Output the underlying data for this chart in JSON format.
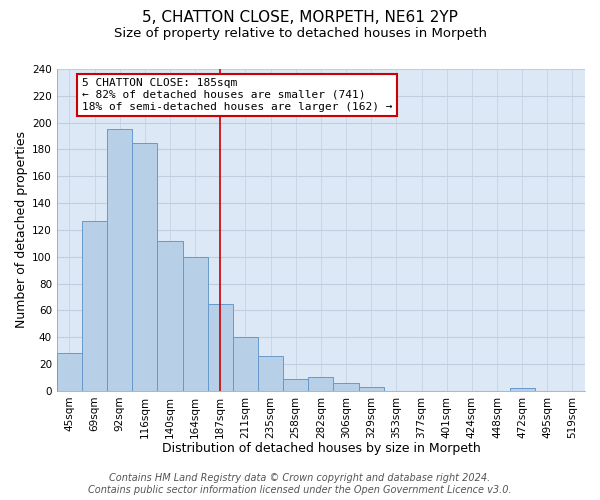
{
  "title": "5, CHATTON CLOSE, MORPETH, NE61 2YP",
  "subtitle": "Size of property relative to detached houses in Morpeth",
  "xlabel": "Distribution of detached houses by size in Morpeth",
  "ylabel": "Number of detached properties",
  "bar_labels": [
    "45sqm",
    "69sqm",
    "92sqm",
    "116sqm",
    "140sqm",
    "164sqm",
    "187sqm",
    "211sqm",
    "235sqm",
    "258sqm",
    "282sqm",
    "306sqm",
    "329sqm",
    "353sqm",
    "377sqm",
    "401sqm",
    "424sqm",
    "448sqm",
    "472sqm",
    "495sqm",
    "519sqm"
  ],
  "bar_values": [
    28,
    127,
    195,
    185,
    112,
    100,
    65,
    40,
    26,
    9,
    10,
    6,
    3,
    0,
    0,
    0,
    0,
    0,
    2,
    0,
    0
  ],
  "bar_color": "#b8cfe8",
  "bar_edge_color": "#6699cc",
  "vline_x_index": 6,
  "vline_color": "#cc0000",
  "annotation_line1": "5 CHATTON CLOSE: 185sqm",
  "annotation_line2": "← 82% of detached houses are smaller (741)",
  "annotation_line3": "18% of semi-detached houses are larger (162) →",
  "annotation_box_color": "#ffffff",
  "annotation_box_edge_color": "#cc0000",
  "ylim": [
    0,
    240
  ],
  "yticks": [
    0,
    20,
    40,
    60,
    80,
    100,
    120,
    140,
    160,
    180,
    200,
    220,
    240
  ],
  "footer_line1": "Contains HM Land Registry data © Crown copyright and database right 2024.",
  "footer_line2": "Contains public sector information licensed under the Open Government Licence v3.0.",
  "background_color": "#ffffff",
  "plot_bg_color": "#dce8f5",
  "grid_color": "#c0cfe0",
  "title_fontsize": 11,
  "subtitle_fontsize": 9.5,
  "axis_label_fontsize": 9,
  "tick_fontsize": 7.5,
  "annotation_fontsize": 8,
  "footer_fontsize": 7
}
